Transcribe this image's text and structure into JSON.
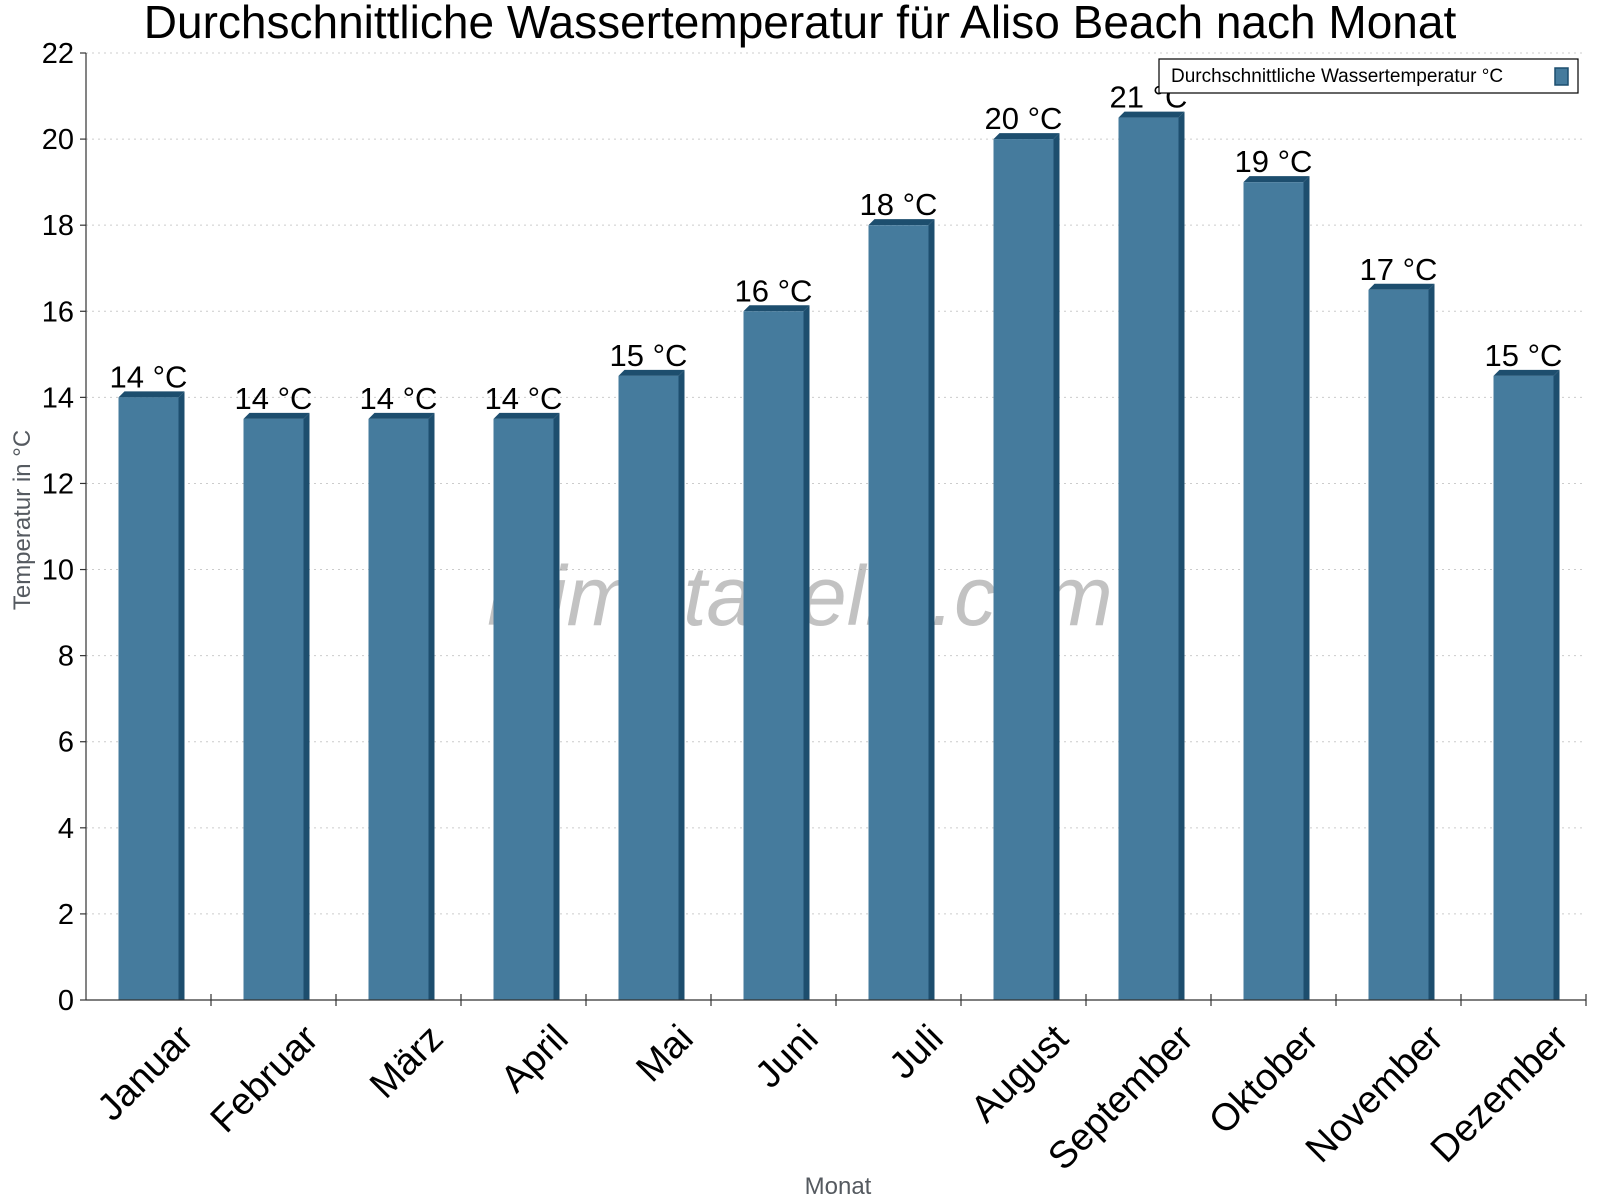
{
  "chart_data": {
    "type": "bar",
    "title": "Durchschnittliche Wassertemperatur für Aliso Beach nach Monat",
    "xlabel": "Monat",
    "ylabel": "Temperatur in °C",
    "ylim": [
      0,
      22
    ],
    "yticks": [
      "0",
      "2",
      "4",
      "6",
      "8",
      "10",
      "12",
      "14",
      "16",
      "18",
      "20",
      "22"
    ],
    "grid": true,
    "legend_position": "top-right",
    "categories": [
      "Januar",
      "Februar",
      "März",
      "April",
      "Mai",
      "Juni",
      "Juli",
      "August",
      "September",
      "Oktober",
      "November",
      "Dezember"
    ],
    "series": [
      {
        "name": "Durchschnittliche Wassertemperatur °C",
        "values": [
          14.0,
          13.5,
          13.5,
          13.5,
          14.5,
          16.0,
          18.0,
          20.0,
          20.5,
          19.0,
          16.5,
          14.5
        ],
        "labels": [
          "14 °C",
          "14 °C",
          "14 °C",
          "14 °C",
          "15 °C",
          "16 °C",
          "18 °C",
          "20 °C",
          "21 °C",
          "19 °C",
          "17 °C",
          "15 °C"
        ]
      }
    ]
  },
  "colors": {
    "bar_face": "#457b9d",
    "bar_dark": "#1d4e6e",
    "grid": "#cccccc",
    "axis": "#333333"
  },
  "watermark": "klimatabelle.com"
}
